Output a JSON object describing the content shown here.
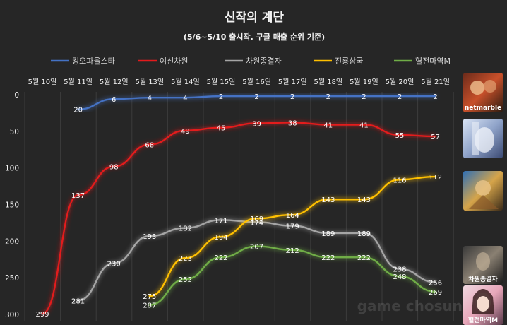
{
  "chart_data": {
    "type": "line",
    "title": "신작의 계단",
    "subtitle": "(5/6~5/10 출시작. 구글 매출 순위 기준)",
    "x": [
      "5월 10일",
      "5월 11일",
      "5월 12일",
      "5월 13일",
      "5월 14일",
      "5월 15일",
      "5월 16일",
      "5월 17일",
      "5월 18일",
      "5월 19일",
      "5월 20일",
      "5월 21일"
    ],
    "y_ticks": [
      0,
      50,
      100,
      150,
      200,
      250,
      300
    ],
    "ylim": [
      0,
      300
    ],
    "y_inverted": true,
    "grid": "vertical",
    "legend_position": "top",
    "series": [
      {
        "name": "킹오파올스타",
        "color": "#4472c4",
        "values": [
          null,
          20,
          6,
          4,
          4,
          2,
          2,
          2,
          2,
          2,
          2,
          2
        ]
      },
      {
        "name": "여신차원",
        "color": "#e31a1c",
        "values": [
          299,
          137,
          98,
          68,
          49,
          45,
          39,
          38,
          41,
          41,
          55,
          57
        ]
      },
      {
        "name": "차원종결자",
        "color": "#a5a5a5",
        "values": [
          null,
          281,
          230,
          193,
          182,
          171,
          174,
          179,
          189,
          189,
          238,
          256
        ]
      },
      {
        "name": "진룡삼국",
        "color": "#ffc000",
        "values": [
          null,
          null,
          null,
          275,
          223,
          194,
          169,
          164,
          143,
          143,
          116,
          112
        ]
      },
      {
        "name": "혈전마역M",
        "color": "#70ad47",
        "values": [
          null,
          null,
          null,
          287,
          252,
          222,
          207,
          212,
          222,
          222,
          248,
          269
        ]
      }
    ]
  },
  "side_images": [
    {
      "name": "kof-allstar-thumbnail",
      "caption": "netmarble"
    },
    {
      "name": "goddess-dimension-thumbnail",
      "caption": ""
    },
    {
      "name": "jinryong-samguk-thumbnail",
      "caption": ""
    },
    {
      "name": "dimension-terminator-thumbnail",
      "caption": "차원종결자"
    },
    {
      "name": "hyeoljeon-mayeok-thumbnail",
      "caption": "혈전마역M"
    }
  ],
  "watermark": "game chosun"
}
